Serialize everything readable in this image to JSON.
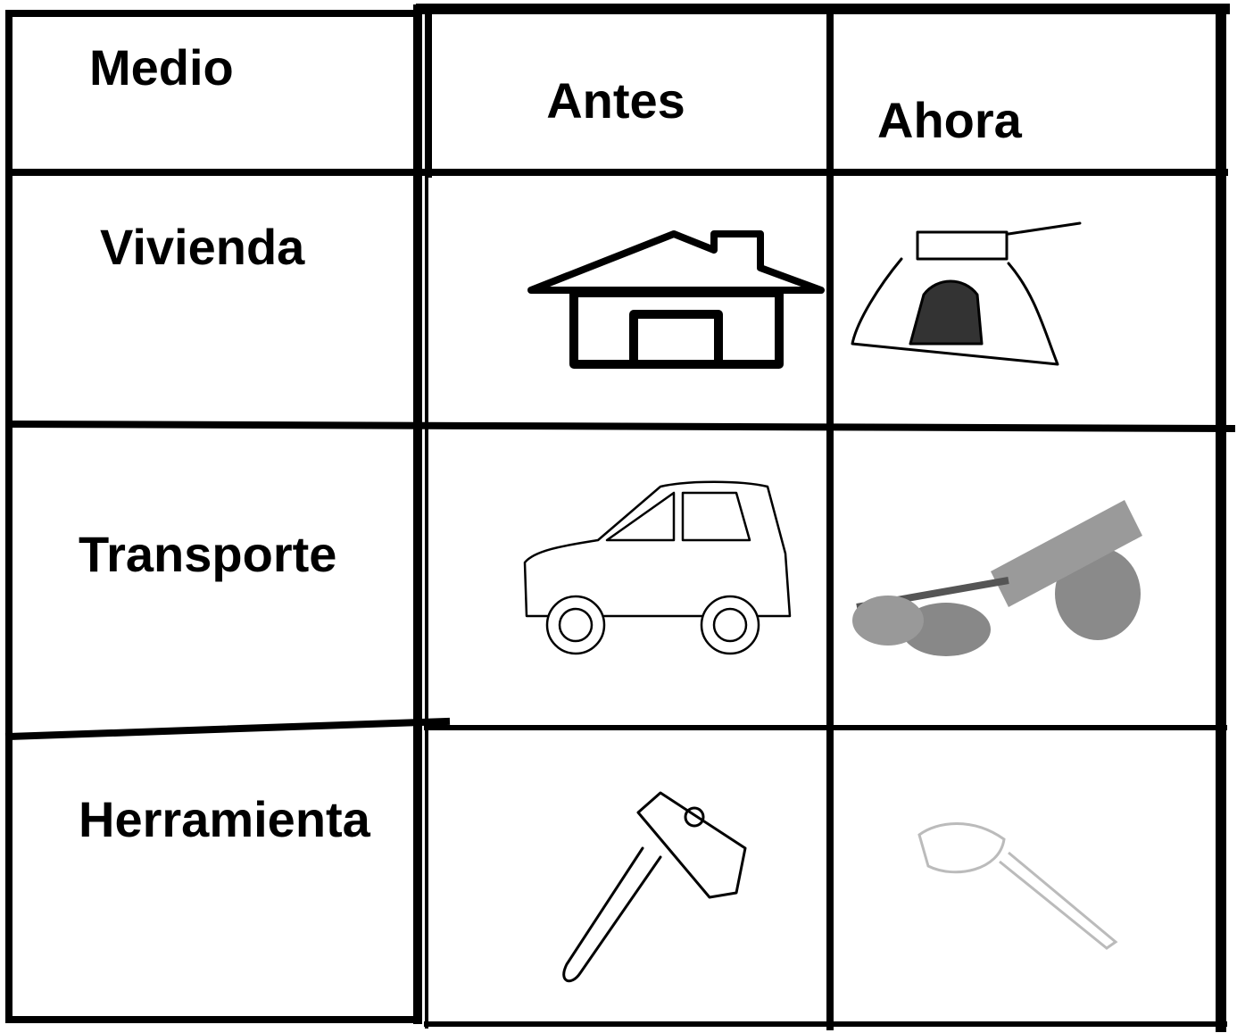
{
  "table": {
    "header": [
      "Medio",
      "Antes",
      "Ahora"
    ],
    "rows": [
      [
        "Vivienda"
      ],
      [
        "Transporte"
      ],
      [
        "Herramienta"
      ]
    ]
  }
}
